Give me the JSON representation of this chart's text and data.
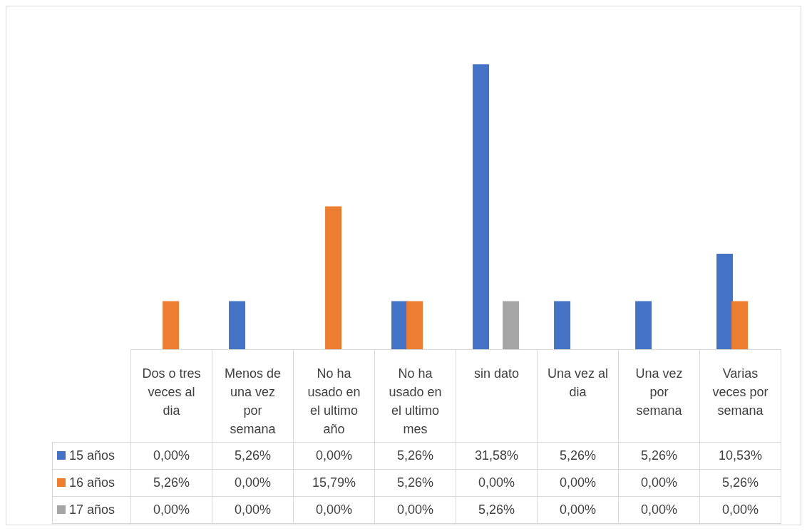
{
  "chart_data": {
    "type": "bar",
    "categories": [
      "Dos o tres veces al dia",
      "Menos de una vez por semana",
      "No ha usado en el ultimo año",
      "No ha usado en el ultimo mes",
      "sin dato",
      "Una vez al dia",
      "Una vez por semana",
      "Varias veces por semana"
    ],
    "series": [
      {
        "name": "15 años",
        "color": "#4472c4",
        "values": [
          0,
          5.26,
          0,
          5.26,
          31.58,
          5.26,
          5.26,
          10.53
        ],
        "value_labels": [
          "0,00%",
          "5,26%",
          "0,00%",
          "5,26%",
          "31,58%",
          "5,26%",
          "5,26%",
          "10,53%"
        ]
      },
      {
        "name": "16 años",
        "color": "#ed7d31",
        "values": [
          5.26,
          0,
          15.79,
          5.26,
          0,
          0,
          0,
          5.26
        ],
        "value_labels": [
          "5,26%",
          "0,00%",
          "15,79%",
          "5,26%",
          "0,00%",
          "0,00%",
          "0,00%",
          "5,26%"
        ]
      },
      {
        "name": "17 años",
        "color": "#a5a5a5",
        "values": [
          0,
          0,
          0,
          0,
          5.26,
          0,
          0,
          0
        ],
        "value_labels": [
          "0,00%",
          "0,00%",
          "0,00%",
          "0,00%",
          "5,26%",
          "0,00%",
          "0,00%",
          "0,00%"
        ]
      }
    ],
    "legend": "bottom"
  }
}
